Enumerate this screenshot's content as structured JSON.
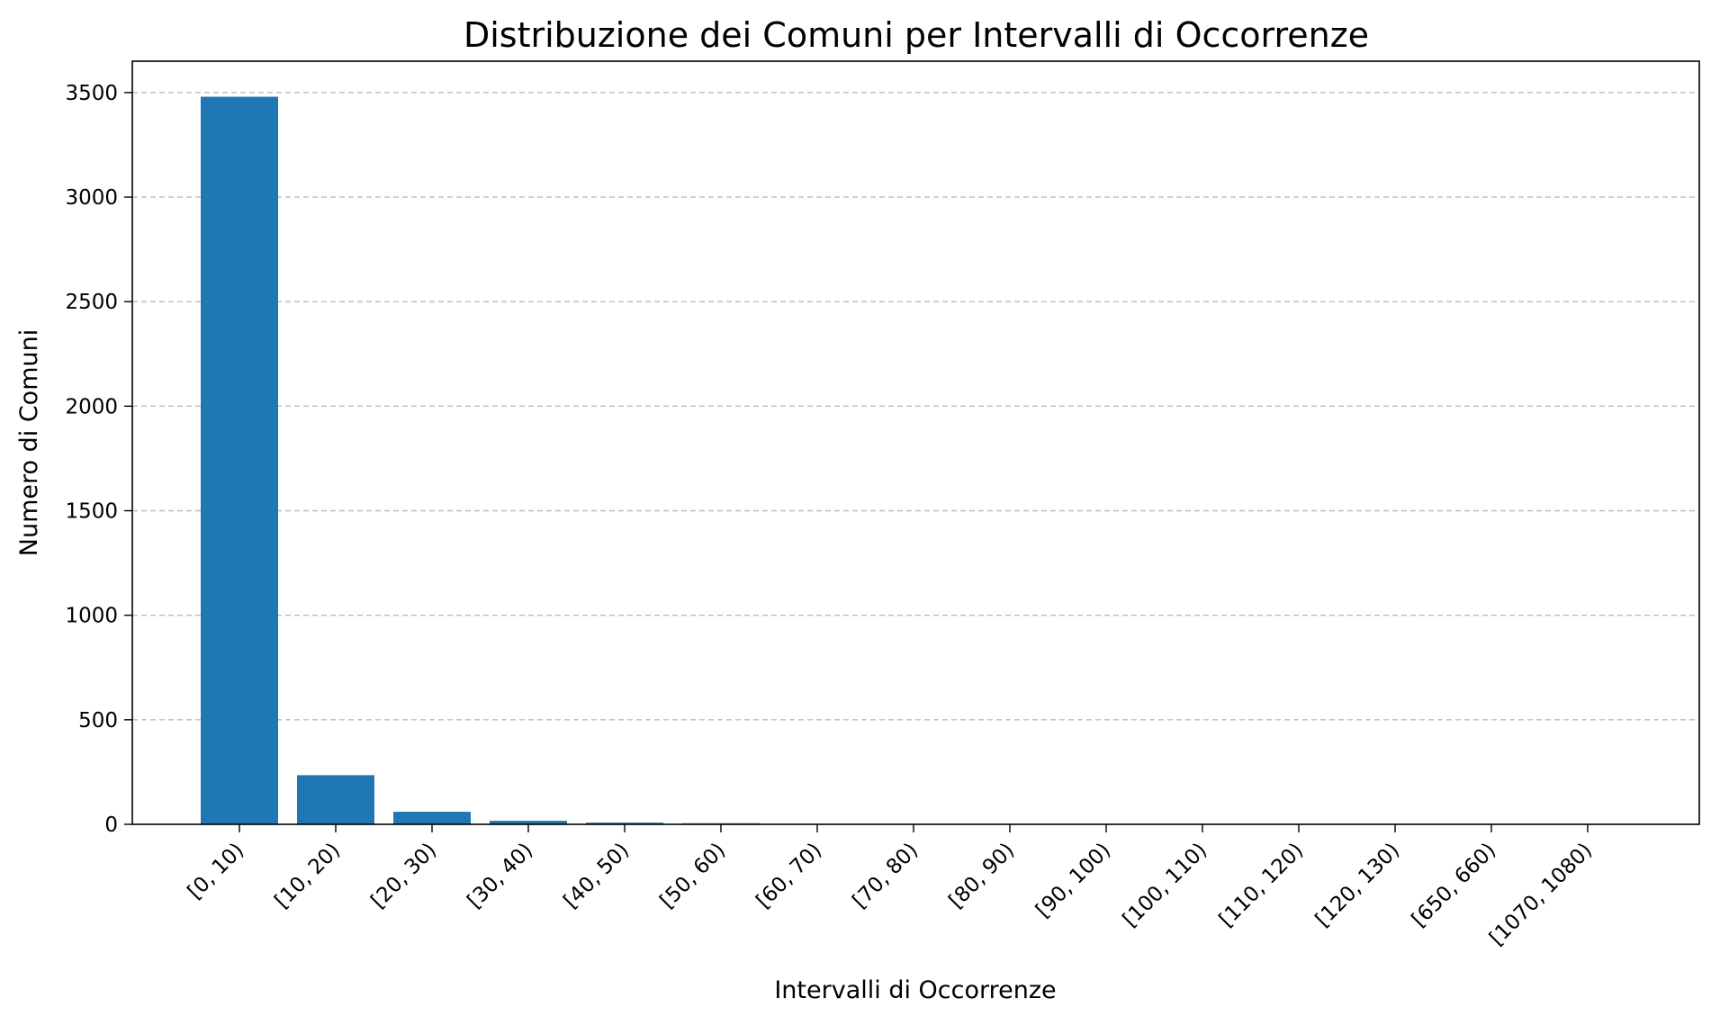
{
  "chart_data": {
    "type": "bar",
    "title": "Distribuzione dei Comuni per Intervalli di Occorrenze",
    "xlabel": "Intervalli di Occorrenze",
    "ylabel": "Numero di Comuni",
    "categories": [
      "[0, 10)",
      "[10, 20)",
      "[20, 30)",
      "[30, 40)",
      "[40, 50)",
      "[50, 60)",
      "[60, 70)",
      "[70, 80)",
      "[80, 90)",
      "[90, 100)",
      "[100, 110)",
      "[110, 120)",
      "[120, 130)",
      "[650, 660)",
      "[1070, 1080)"
    ],
    "values": [
      3480,
      235,
      60,
      17,
      8,
      5,
      2,
      1,
      1,
      1,
      1,
      1,
      1,
      1,
      1
    ],
    "ylim": [
      0,
      3650
    ],
    "yticks": [
      0,
      500,
      1000,
      1500,
      2000,
      2500,
      3000,
      3500
    ],
    "grid": "y",
    "bar_color": "#1f77b4",
    "grid_color": "#b0b0b0"
  }
}
